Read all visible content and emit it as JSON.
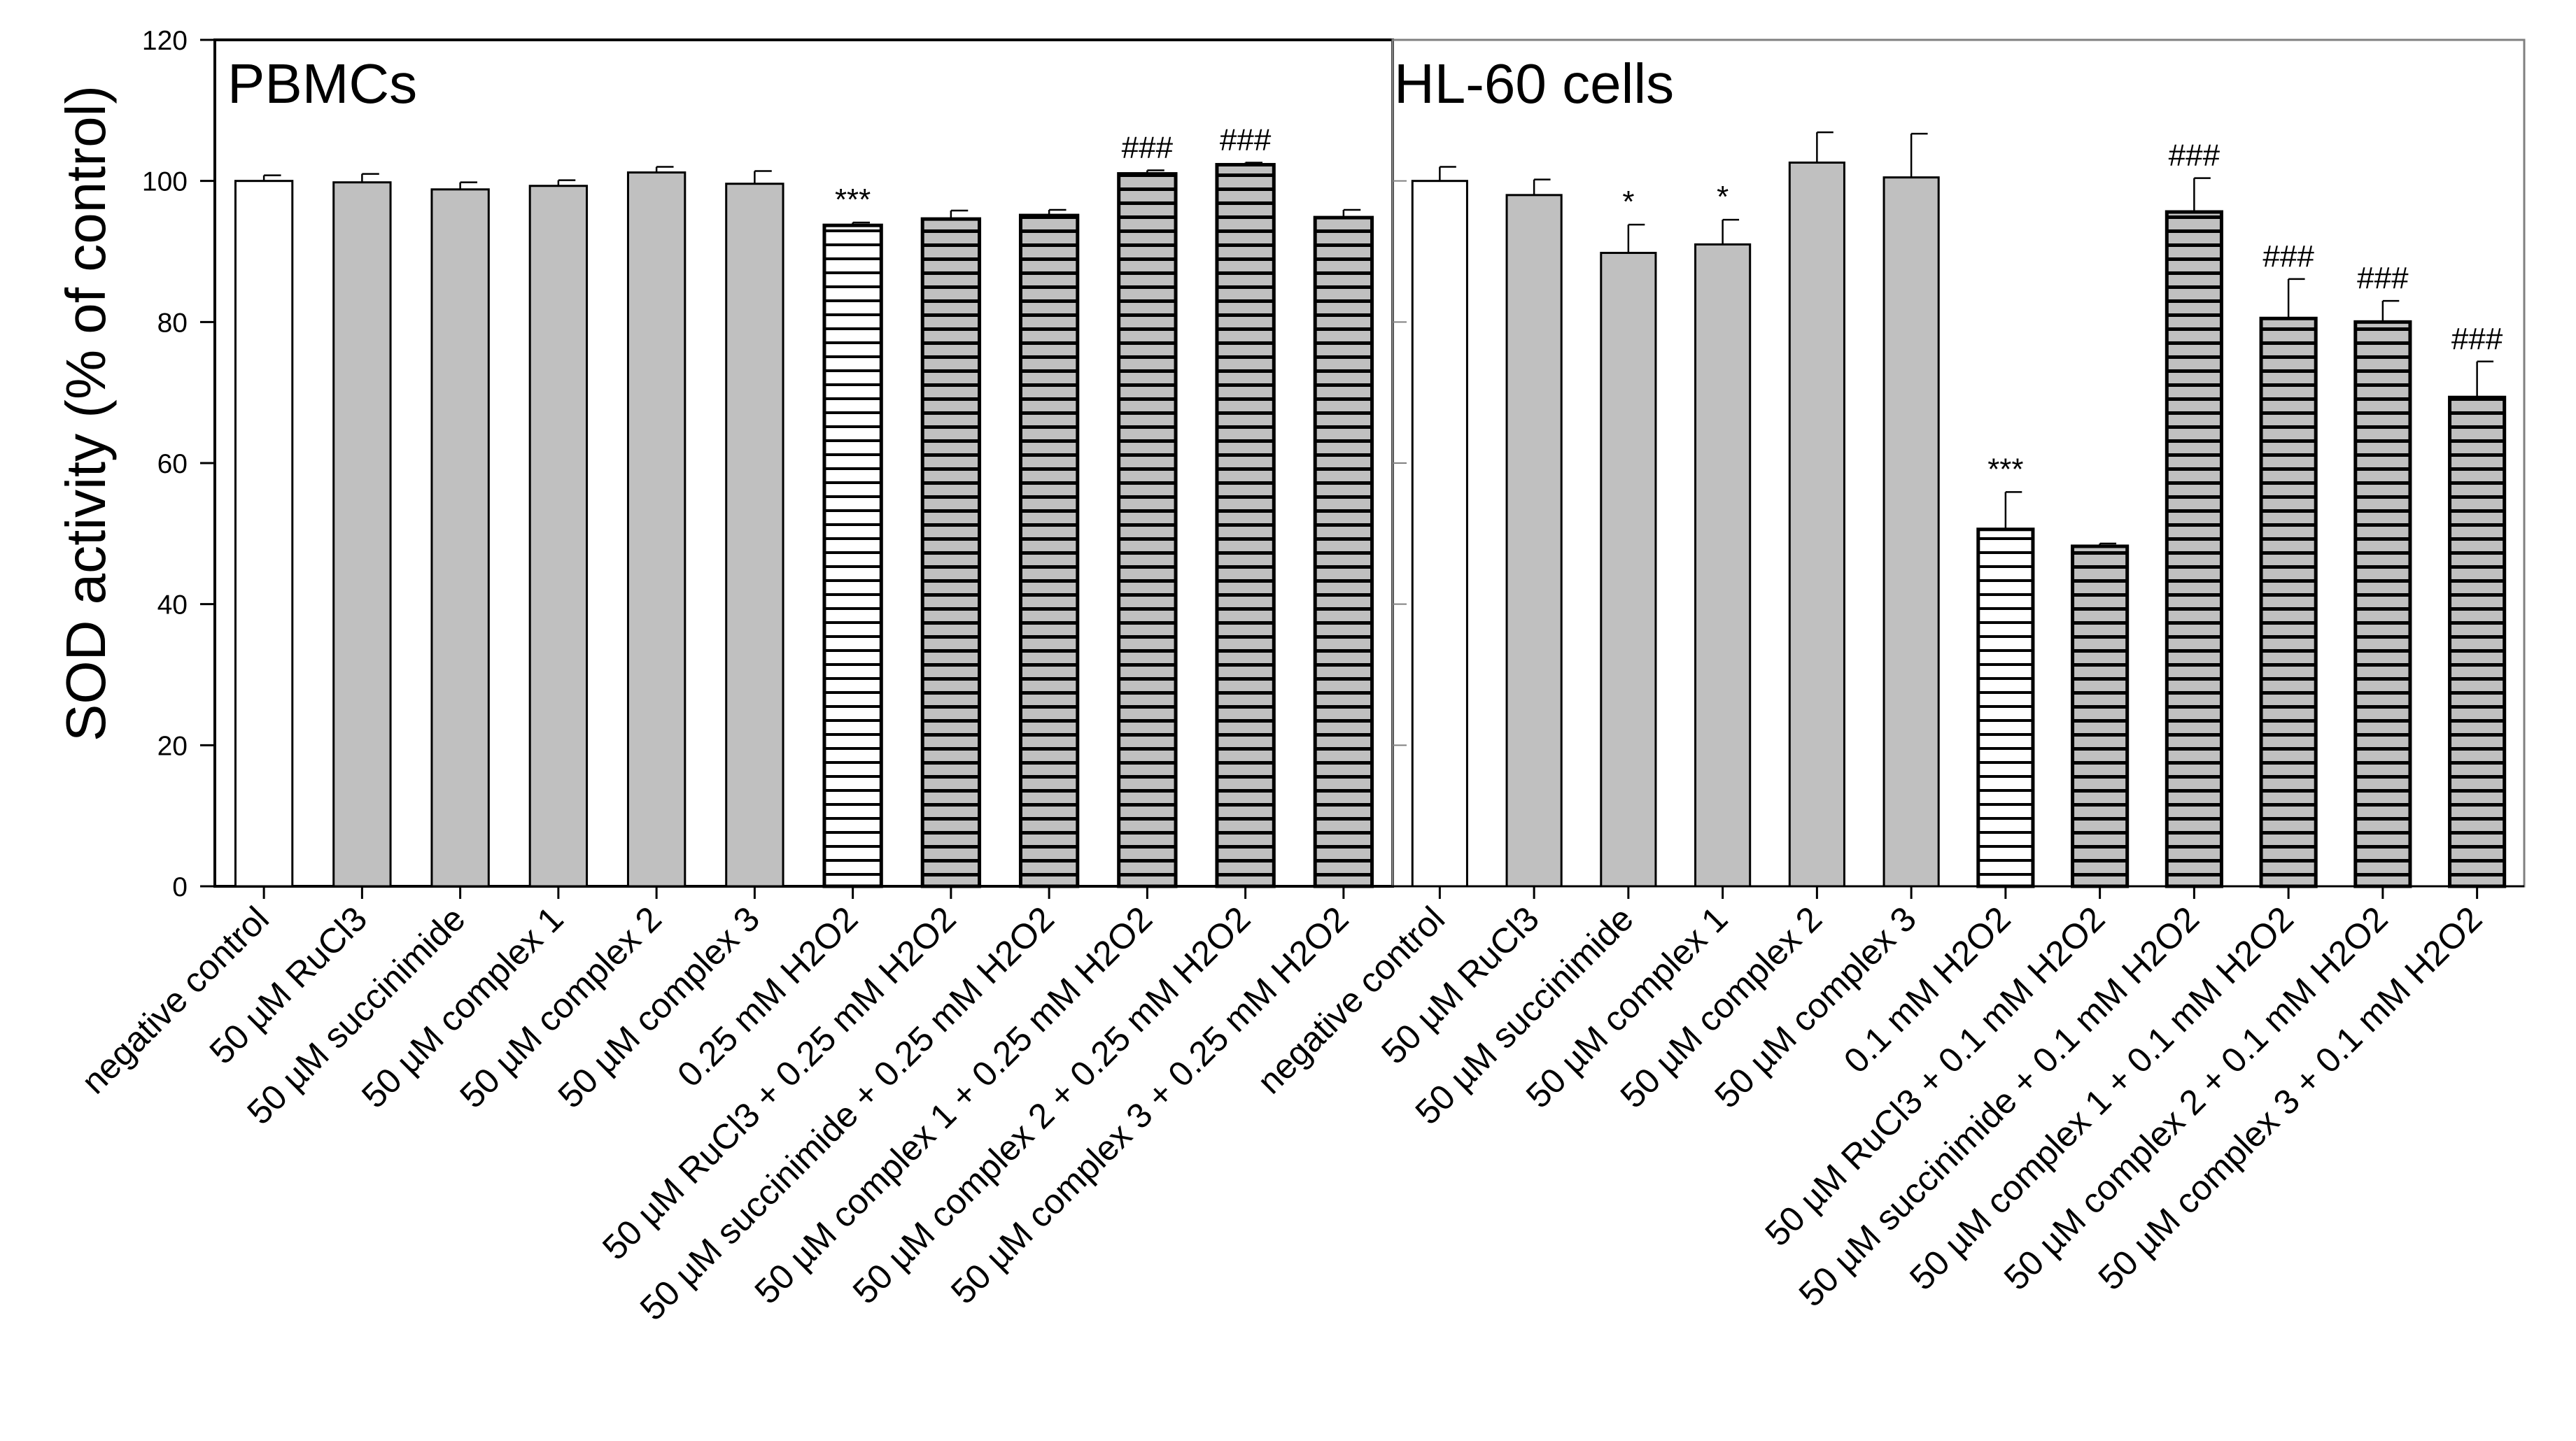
{
  "chart_data": {
    "type": "bar",
    "ylabel": "SOD activity (% of control)",
    "ylim": [
      0,
      120
    ],
    "yticks": [
      0,
      20,
      40,
      60,
      80,
      100,
      120
    ],
    "panels": [
      {
        "title": "PBMCs",
        "categories": [
          "negative control",
          "50 µM RuCl3",
          "50 µM succinimide",
          "50 µM complex 1",
          "50 µM complex 2",
          "50 µM complex 3",
          "0.25 mM H2O2",
          "50 µM RuCl3 + 0.25 mM H2O2",
          "50 µM succinimide + 0.25 mM H2O2",
          "50 µM complex 1 + 0.25 mM H2O2",
          "50 µM complex 2 + 0.25 mM H2O2",
          "50 µM complex 3 + 0.25 mM H2O2"
        ],
        "values": [
          100,
          99.8,
          98.8,
          99.3,
          101.2,
          99.6,
          93.7,
          94.6,
          95.1,
          101,
          102.3,
          94.8
        ],
        "errors": [
          0.8,
          1.2,
          1.0,
          0.8,
          0.8,
          1.8,
          0.4,
          1.2,
          0.8,
          0.5,
          0.3,
          1.1
        ],
        "styles": [
          "white",
          "gray",
          "gray",
          "gray",
          "gray",
          "gray",
          "hatch-white",
          "hatch-gray",
          "hatch-gray",
          "hatch-gray",
          "hatch-gray",
          "hatch-gray"
        ],
        "annotations": [
          "",
          "",
          "",
          "",
          "",
          "",
          "***",
          "",
          "",
          "###",
          "###",
          ""
        ]
      },
      {
        "title": "HL-60 cells",
        "categories": [
          "negative control",
          "50 µM RuCl3",
          "50 µM succinimide",
          "50 µM complex 1",
          "50 µM complex 2",
          "50 µM complex 3",
          "0.1 mM H2O2",
          "50 µM RuCl3 + 0.1 mM H2O2",
          "50 µM succinimide + 0.1 mM H2O2",
          "50 µM complex 1 + 0.1 mM H2O2",
          "50 µM complex 2 + 0.1 mM H2O2",
          "50 µM complex 3 + 0.1 mM H2O2"
        ],
        "values": [
          100,
          98,
          89.8,
          91,
          102.6,
          100.5,
          50.6,
          48.2,
          95.6,
          80.5,
          80,
          69.3
        ],
        "errors": [
          2.0,
          2.2,
          4.0,
          3.5,
          4.3,
          6.2,
          5.3,
          0.4,
          4.8,
          5.6,
          3.0,
          5.1
        ],
        "styles": [
          "white",
          "gray",
          "gray",
          "gray",
          "gray",
          "gray",
          "hatch-white",
          "hatch-gray",
          "hatch-gray",
          "hatch-gray",
          "hatch-gray",
          "hatch-gray"
        ],
        "annotations": [
          "",
          "",
          "*",
          "*",
          "",
          "",
          "***",
          "",
          "###",
          "###",
          "###",
          "###"
        ]
      }
    ]
  },
  "colors": {
    "gray_fill": "#c0c0c0",
    "white_fill": "#ffffff",
    "line": "#000000",
    "panel2_frame": "#808080"
  }
}
